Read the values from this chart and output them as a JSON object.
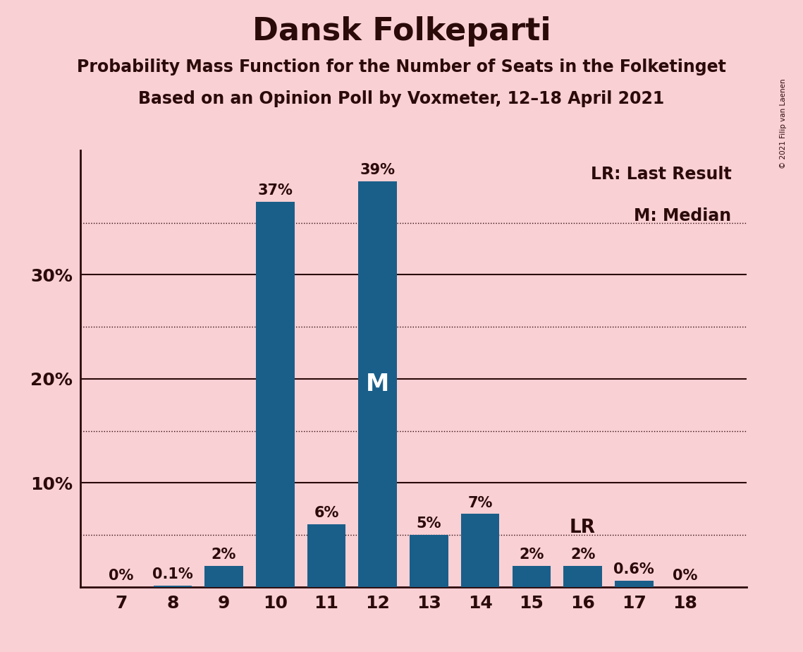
{
  "title": "Dansk Folkeparti",
  "subtitle1": "Probability Mass Function for the Number of Seats in the Folketinget",
  "subtitle2": "Based on an Opinion Poll by Voxmeter, 12–18 April 2021",
  "copyright": "© 2021 Filip van Laenen",
  "categories": [
    7,
    8,
    9,
    10,
    11,
    12,
    13,
    14,
    15,
    16,
    17,
    18
  ],
  "values": [
    0.0,
    0.1,
    2.0,
    37.0,
    6.0,
    39.0,
    5.0,
    7.0,
    2.0,
    2.0,
    0.6,
    0.0
  ],
  "labels": [
    "0%",
    "0.1%",
    "2%",
    "37%",
    "6%",
    "39%",
    "5%",
    "7%",
    "2%",
    "2%",
    "0.6%",
    "0%"
  ],
  "bar_color": "#1a5f8a",
  "background_color": "#f9d0d4",
  "text_color": "#2b0a0a",
  "median_seat": 12,
  "last_result_seat": 16,
  "legend_lr": "LR: Last Result",
  "legend_m": "M: Median",
  "ylim": [
    0,
    42
  ],
  "solid_grid": [
    10,
    20,
    30
  ],
  "dotted_grid": [
    5,
    15,
    25,
    35
  ],
  "title_fontsize": 32,
  "subtitle_fontsize": 17,
  "label_fontsize": 15,
  "tick_fontsize": 18,
  "legend_fontsize": 17,
  "median_label_color": "#ffffff",
  "median_label_fontsize": 24
}
